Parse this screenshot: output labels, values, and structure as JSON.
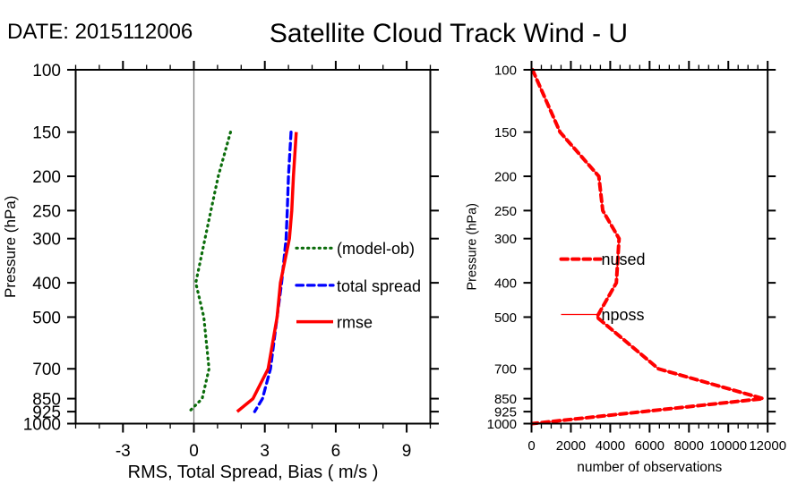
{
  "header": {
    "date_label": "DATE: 2015112006",
    "title": "Satellite Cloud Track Wind - U"
  },
  "chart_data": [
    {
      "id": "stats",
      "type": "line",
      "xlabel": "RMS, Total Spread, Bias ( m/s )",
      "ylabel": "Pressure (hPa)",
      "xlim": [
        -5,
        10
      ],
      "x_major_ticks": [
        -3,
        0,
        3,
        6,
        9
      ],
      "x_tick_labels": [
        "-3",
        "0",
        "3",
        "6",
        "9"
      ],
      "x_minor_step": 1,
      "yscale": "log",
      "ylim": [
        100,
        1000
      ],
      "y_ticks": [
        100,
        150,
        200,
        250,
        300,
        400,
        500,
        700,
        850,
        925,
        1000
      ],
      "y_tick_labels": [
        "100",
        "150",
        "200",
        "250",
        "300",
        "400",
        "500",
        "700",
        "850",
        "925",
        "1000"
      ],
      "grid": false,
      "zero_line": {
        "x": 0,
        "color": "#7d7d7d"
      },
      "levels": [
        150,
        200,
        250,
        300,
        400,
        500,
        700,
        850,
        925
      ],
      "series": [
        {
          "name": "(model-ob)",
          "color": "#0b6c0b",
          "style": "dotted",
          "width": 3.2,
          "values": [
            1.55,
            1.03,
            0.72,
            0.47,
            0.08,
            0.42,
            0.64,
            0.35,
            -0.2
          ]
        },
        {
          "name": "total spread",
          "color": "#0000ff",
          "style": "dashed",
          "width": 3.3,
          "values": [
            4.11,
            4.0,
            3.95,
            3.9,
            3.71,
            3.52,
            3.24,
            2.9,
            2.57
          ]
        },
        {
          "name": "rmse",
          "color": "#ff0000",
          "style": "solid",
          "width": 3.5,
          "values": [
            4.33,
            4.21,
            4.14,
            4.04,
            3.66,
            3.52,
            3.14,
            2.5,
            1.83
          ]
        }
      ],
      "legend_position": "inside-right"
    },
    {
      "id": "counts",
      "type": "line",
      "xlabel": "number of observations",
      "ylabel": "Pressure (hPa)",
      "xlim": [
        0,
        12000
      ],
      "x_major_ticks": [
        0,
        2000,
        4000,
        6000,
        8000,
        10000,
        12000
      ],
      "x_tick_labels": [
        "0",
        "2000",
        "4000",
        "6000",
        "8000",
        "10000",
        "12000"
      ],
      "x_minor_step": 500,
      "yscale": "log",
      "ylim": [
        100,
        1000
      ],
      "y_ticks": [
        100,
        150,
        200,
        250,
        300,
        400,
        500,
        700,
        850,
        925,
        1000
      ],
      "y_tick_labels": [
        "100",
        "150",
        "200",
        "250",
        "300",
        "400",
        "500",
        "700",
        "850",
        "925",
        "1000"
      ],
      "grid": false,
      "zero_line": null,
      "levels": [
        100,
        150,
        200,
        250,
        300,
        400,
        500,
        700,
        850,
        1000
      ],
      "series": [
        {
          "name": "nposs",
          "color": "#ff0000",
          "style": "solid",
          "width": 1.3,
          "values": [
            50,
            1450,
            3420,
            3620,
            4450,
            4310,
            3320,
            6450,
            11770,
            40
          ]
        },
        {
          "name": "nused",
          "color": "#ff0000",
          "style": "dashed",
          "width": 4.0,
          "values": [
            50,
            1450,
            3420,
            3620,
            4450,
            4310,
            3320,
            6450,
            11770,
            40
          ]
        }
      ],
      "legend_position": "inside-left"
    }
  ]
}
